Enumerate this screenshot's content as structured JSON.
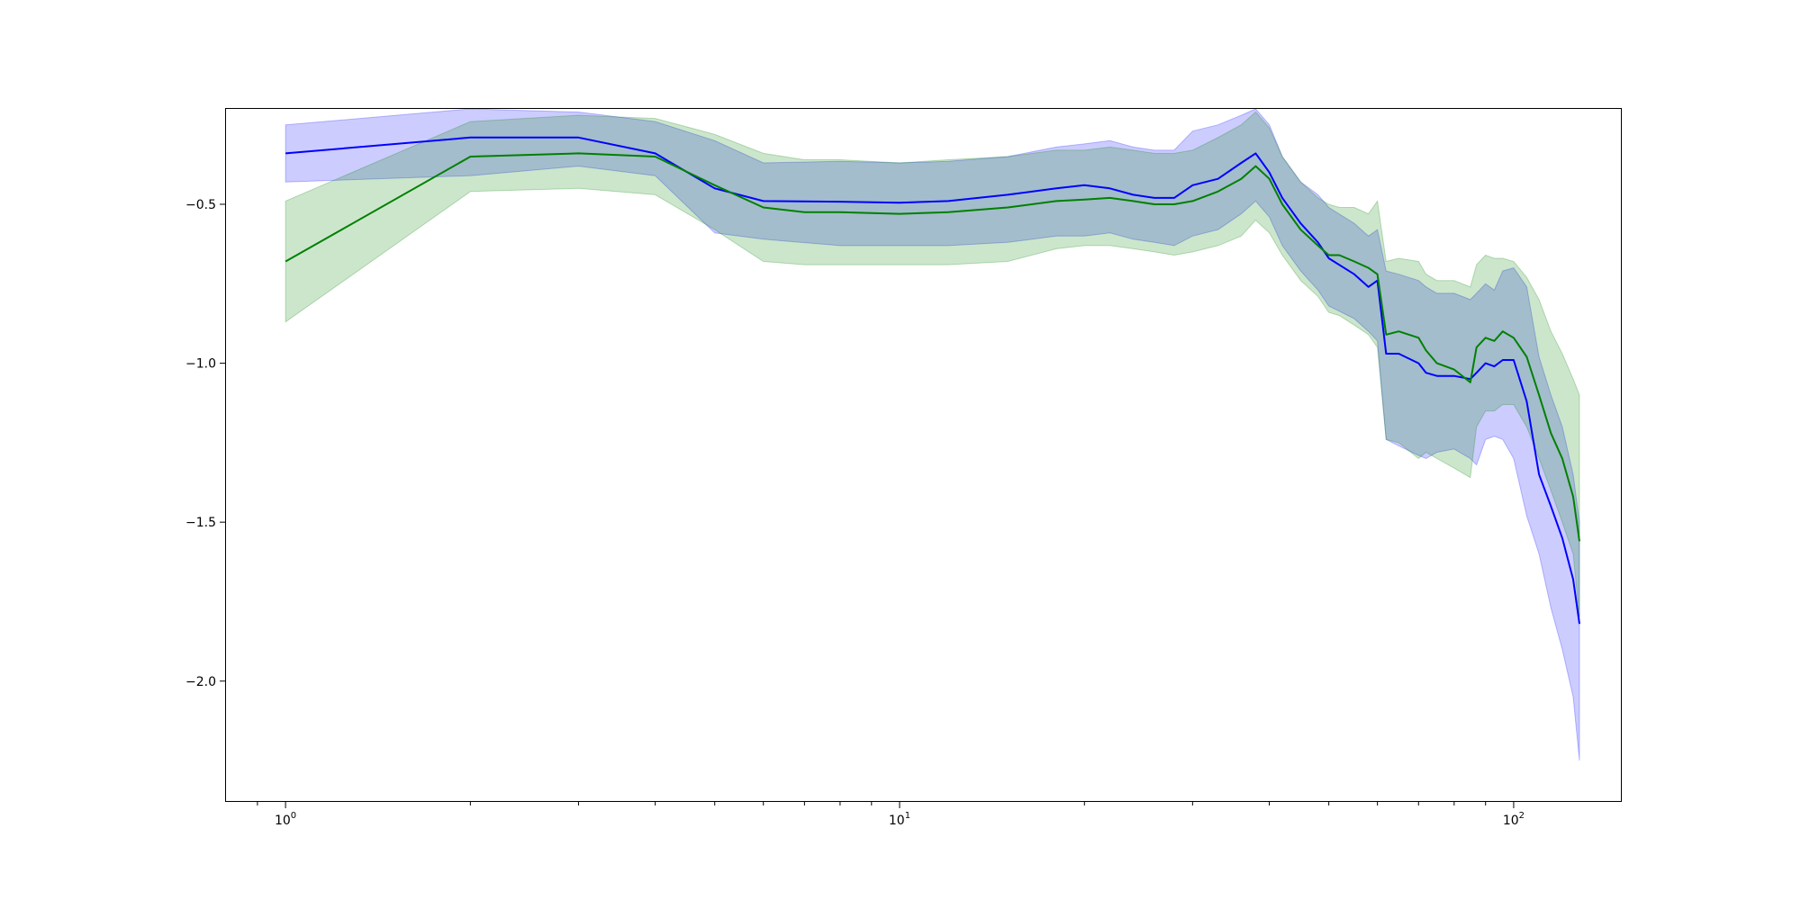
{
  "chart_data": {
    "type": "line",
    "title": "",
    "xlabel": "",
    "ylabel": "",
    "xscale": "log",
    "xlim": [
      0.8,
      150
    ],
    "ylim": [
      -2.38,
      -0.2
    ],
    "grid": false,
    "y_ticks": [
      {
        "value": -0.5,
        "label": "−0.5"
      },
      {
        "value": -1.0,
        "label": "−1.0"
      },
      {
        "value": -1.5,
        "label": "−1.5"
      },
      {
        "value": -2.0,
        "label": "−2.0"
      }
    ],
    "x_ticks": [
      {
        "value": 1,
        "base": "10",
        "exp": "0"
      },
      {
        "value": 10,
        "base": "10",
        "exp": "1"
      },
      {
        "value": 100,
        "base": "10",
        "exp": "2"
      }
    ],
    "series": [
      {
        "color": "#0000ff",
        "band_color": "#0000ff",
        "x": [
          1,
          2,
          3,
          4,
          5,
          6,
          8,
          10,
          12,
          15,
          18,
          20,
          22,
          24,
          26,
          28,
          30,
          33,
          36,
          38,
          40,
          42,
          45,
          48,
          50,
          55,
          58,
          60,
          62,
          65,
          70,
          72,
          75,
          80,
          85,
          87,
          90,
          93,
          96,
          100,
          105,
          110,
          115,
          120,
          125,
          128
        ],
        "y": [
          -0.34,
          -0.29,
          -0.29,
          -0.34,
          -0.45,
          -0.49,
          -0.492,
          -0.495,
          -0.49,
          -0.47,
          -0.45,
          -0.44,
          -0.45,
          -0.47,
          -0.48,
          -0.48,
          -0.44,
          -0.42,
          -0.37,
          -0.34,
          -0.4,
          -0.48,
          -0.56,
          -0.62,
          -0.67,
          -0.72,
          -0.76,
          -0.74,
          -0.97,
          -0.97,
          -1.0,
          -1.03,
          -1.04,
          -1.04,
          -1.05,
          -1.03,
          -1.0,
          -1.01,
          -0.99,
          -0.99,
          -1.12,
          -1.35,
          -1.45,
          -1.55,
          -1.68,
          -1.82
        ],
        "lower": [
          -0.43,
          -0.41,
          -0.38,
          -0.41,
          -0.59,
          -0.61,
          -0.63,
          -0.63,
          -0.63,
          -0.62,
          -0.6,
          -0.6,
          -0.59,
          -0.61,
          -0.62,
          -0.63,
          -0.6,
          -0.58,
          -0.53,
          -0.49,
          -0.54,
          -0.63,
          -0.71,
          -0.77,
          -0.82,
          -0.86,
          -0.9,
          -0.93,
          -1.24,
          -1.26,
          -1.29,
          -1.3,
          -1.28,
          -1.27,
          -1.3,
          -1.32,
          -1.24,
          -1.23,
          -1.24,
          -1.3,
          -1.48,
          -1.6,
          -1.77,
          -1.9,
          -2.05,
          -2.25
        ],
        "upper": [
          -0.25,
          -0.2,
          -0.21,
          -0.24,
          -0.3,
          -0.37,
          -0.365,
          -0.37,
          -0.365,
          -0.35,
          -0.32,
          -0.31,
          -0.3,
          -0.32,
          -0.33,
          -0.33,
          -0.27,
          -0.25,
          -0.22,
          -0.2,
          -0.25,
          -0.35,
          -0.43,
          -0.47,
          -0.51,
          -0.56,
          -0.6,
          -0.58,
          -0.71,
          -0.72,
          -0.74,
          -0.76,
          -0.78,
          -0.78,
          -0.8,
          -0.78,
          -0.75,
          -0.77,
          -0.71,
          -0.7,
          -0.76,
          -0.98,
          -1.1,
          -1.2,
          -1.35,
          -1.5
        ]
      },
      {
        "color": "#008000",
        "band_color": "#008000",
        "x": [
          1,
          2,
          3,
          4,
          5,
          6,
          7,
          8,
          10,
          12,
          15,
          18,
          20,
          22,
          24,
          26,
          28,
          30,
          33,
          36,
          38,
          40,
          42,
          45,
          48,
          50,
          52,
          55,
          58,
          60,
          62,
          65,
          70,
          72,
          75,
          80,
          85,
          87,
          90,
          93,
          96,
          100,
          105,
          110,
          115,
          120,
          125,
          128
        ],
        "y": [
          -0.68,
          -0.35,
          -0.34,
          -0.35,
          -0.44,
          -0.51,
          -0.525,
          -0.525,
          -0.53,
          -0.525,
          -0.51,
          -0.49,
          -0.485,
          -0.48,
          -0.49,
          -0.5,
          -0.5,
          -0.49,
          -0.46,
          -0.42,
          -0.38,
          -0.42,
          -0.5,
          -0.58,
          -0.63,
          -0.66,
          -0.66,
          -0.68,
          -0.7,
          -0.72,
          -0.91,
          -0.9,
          -0.92,
          -0.96,
          -1.0,
          -1.02,
          -1.06,
          -0.95,
          -0.92,
          -0.93,
          -0.9,
          -0.92,
          -0.98,
          -1.1,
          -1.22,
          -1.3,
          -1.42,
          -1.56
        ],
        "lower": [
          -0.87,
          -0.46,
          -0.45,
          -0.47,
          -0.58,
          -0.68,
          -0.69,
          -0.69,
          -0.69,
          -0.69,
          -0.68,
          -0.64,
          -0.63,
          -0.63,
          -0.64,
          -0.65,
          -0.66,
          -0.65,
          -0.63,
          -0.6,
          -0.55,
          -0.59,
          -0.66,
          -0.74,
          -0.79,
          -0.84,
          -0.85,
          -0.88,
          -0.91,
          -0.95,
          -1.24,
          -1.25,
          -1.3,
          -1.28,
          -1.3,
          -1.33,
          -1.36,
          -1.2,
          -1.15,
          -1.15,
          -1.13,
          -1.13,
          -1.2,
          -1.3,
          -1.4,
          -1.5,
          -1.6,
          -1.8
        ],
        "upper": [
          -0.49,
          -0.24,
          -0.22,
          -0.23,
          -0.28,
          -0.34,
          -0.36,
          -0.36,
          -0.37,
          -0.36,
          -0.35,
          -0.33,
          -0.33,
          -0.32,
          -0.33,
          -0.34,
          -0.34,
          -0.33,
          -0.29,
          -0.25,
          -0.21,
          -0.26,
          -0.35,
          -0.43,
          -0.48,
          -0.5,
          -0.51,
          -0.51,
          -0.53,
          -0.49,
          -0.68,
          -0.67,
          -0.68,
          -0.72,
          -0.74,
          -0.74,
          -0.76,
          -0.69,
          -0.66,
          -0.67,
          -0.67,
          -0.68,
          -0.73,
          -0.8,
          -0.9,
          -0.97,
          -1.05,
          -1.1
        ]
      }
    ]
  }
}
